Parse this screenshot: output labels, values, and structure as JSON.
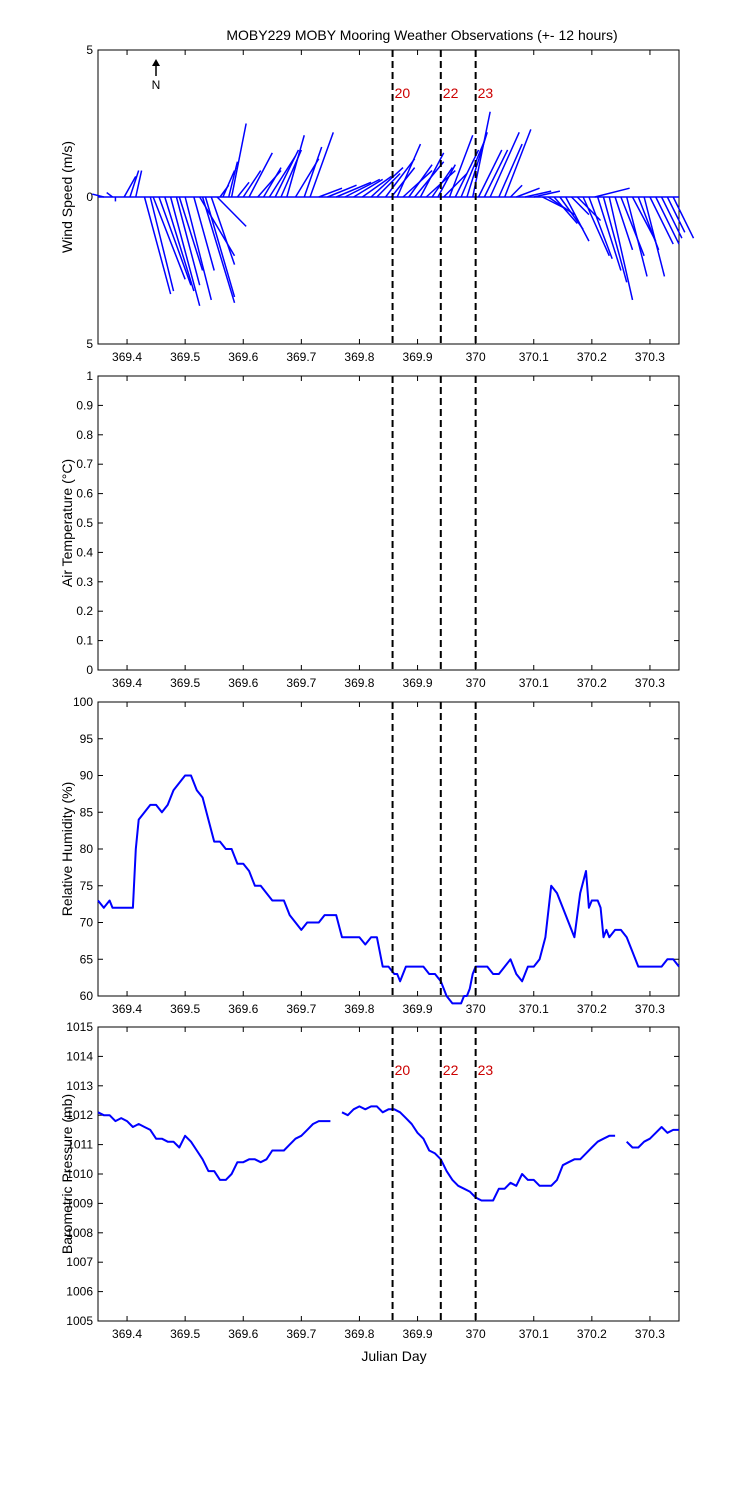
{
  "title": "MOBY229 MOBY Mooring Weather Observations (+- 12 hours)",
  "xlabel": "Julian Day",
  "north_label": "N",
  "x_range": [
    369.35,
    370.35
  ],
  "x_ticks": [
    369.4,
    369.5,
    369.6,
    369.7,
    369.8,
    369.9,
    370,
    370.1,
    370.2,
    370.3
  ],
  "x_tick_labels": [
    "369.4",
    "369.5",
    "369.6",
    "369.7",
    "369.8",
    "369.9",
    "370",
    "370.1",
    "370.2",
    "370.3"
  ],
  "event_lines": [
    {
      "x": 369.857,
      "label": "20"
    },
    {
      "x": 369.94,
      "label": "22"
    },
    {
      "x": 370.0,
      "label": "23"
    }
  ],
  "colors": {
    "series": "#0000ff",
    "event_label": "#cc0000",
    "event_line": "#000000"
  },
  "chart_data": [
    {
      "type": "quiver",
      "ylabel": "Wind Speed (m/s)",
      "ylim": [
        -5,
        5
      ],
      "y_tick_labels": [
        "5",
        "0",
        "5"
      ],
      "show_event_labels": true,
      "vectors": [
        {
          "x": 369.36,
          "u": -0.02,
          "v": 0.1
        },
        {
          "x": 369.375,
          "u": -0.01,
          "v": 0.15
        },
        {
          "x": 369.38,
          "u": 0.0,
          "v": -0.15
        },
        {
          "x": 369.395,
          "u": 0.02,
          "v": 0.7
        },
        {
          "x": 369.405,
          "u": 0.015,
          "v": 0.9
        },
        {
          "x": 369.415,
          "u": 0.01,
          "v": 0.9
        },
        {
          "x": 369.43,
          "u": 0.045,
          "v": -3.3
        },
        {
          "x": 369.44,
          "u": 0.04,
          "v": -3.2
        },
        {
          "x": 369.445,
          "u": 0.055,
          "v": -2.8
        },
        {
          "x": 369.455,
          "u": 0.055,
          "v": -3.0
        },
        {
          "x": 369.465,
          "u": 0.05,
          "v": -3.2
        },
        {
          "x": 369.475,
          "u": 0.05,
          "v": -3.7
        },
        {
          "x": 369.485,
          "u": 0.04,
          "v": -3.0
        },
        {
          "x": 369.49,
          "u": 0.04,
          "v": -2.5
        },
        {
          "x": 369.5,
          "u": 0.045,
          "v": -3.5
        },
        {
          "x": 369.515,
          "u": 0.035,
          "v": -2.5
        },
        {
          "x": 369.525,
          "u": 0.06,
          "v": -2.0
        },
        {
          "x": 369.53,
          "u": 0.055,
          "v": -3.6
        },
        {
          "x": 369.535,
          "u": 0.05,
          "v": -3.4
        },
        {
          "x": 369.545,
          "u": 0.04,
          "v": -2.3
        },
        {
          "x": 369.555,
          "u": 0.05,
          "v": -1.0
        },
        {
          "x": 369.56,
          "u": 0.015,
          "v": 0.4
        },
        {
          "x": 369.565,
          "u": 0.02,
          "v": 0.9
        },
        {
          "x": 369.575,
          "u": 0.015,
          "v": 1.2
        },
        {
          "x": 369.58,
          "u": 0.025,
          "v": 2.5
        },
        {
          "x": 369.59,
          "u": 0.02,
          "v": 0.5
        },
        {
          "x": 369.6,
          "u": 0.03,
          "v": 0.9
        },
        {
          "x": 369.61,
          "u": 0.04,
          "v": 1.5
        },
        {
          "x": 369.625,
          "u": 0.04,
          "v": 0.9
        },
        {
          "x": 369.635,
          "u": 0.03,
          "v": 1.0
        },
        {
          "x": 369.645,
          "u": 0.045,
          "v": 1.4
        },
        {
          "x": 369.655,
          "u": 0.04,
          "v": 1.6
        },
        {
          "x": 369.665,
          "u": 0.035,
          "v": 1.6
        },
        {
          "x": 369.675,
          "u": 0.03,
          "v": 2.1
        },
        {
          "x": 369.69,
          "u": 0.04,
          "v": 1.3
        },
        {
          "x": 369.705,
          "u": 0.03,
          "v": 1.7
        },
        {
          "x": 369.715,
          "u": 0.04,
          "v": 2.2
        },
        {
          "x": 369.73,
          "u": 0.04,
          "v": 0.3
        },
        {
          "x": 369.745,
          "u": 0.05,
          "v": 0.4
        },
        {
          "x": 369.76,
          "u": 0.06,
          "v": 0.5
        },
        {
          "x": 369.775,
          "u": 0.06,
          "v": 0.6
        },
        {
          "x": 369.79,
          "u": 0.05,
          "v": 0.6
        },
        {
          "x": 369.805,
          "u": 0.05,
          "v": 0.7
        },
        {
          "x": 369.82,
          "u": 0.055,
          "v": 1.0
        },
        {
          "x": 369.83,
          "u": 0.04,
          "v": 0.8
        },
        {
          "x": 369.845,
          "u": 0.05,
          "v": 1.3
        },
        {
          "x": 369.855,
          "u": 0.04,
          "v": 1.0
        },
        {
          "x": 369.865,
          "u": 0.04,
          "v": 1.8
        },
        {
          "x": 369.875,
          "u": 0.05,
          "v": 0.9
        },
        {
          "x": 369.885,
          "u": 0.04,
          "v": 1.1
        },
        {
          "x": 369.895,
          "u": 0.05,
          "v": 1.2
        },
        {
          "x": 369.905,
          "u": 0.04,
          "v": 1.5
        },
        {
          "x": 369.915,
          "u": 0.05,
          "v": 0.9
        },
        {
          "x": 369.925,
          "u": 0.035,
          "v": 1.0
        },
        {
          "x": 369.935,
          "u": 0.03,
          "v": 1.1
        },
        {
          "x": 369.945,
          "u": 0.04,
          "v": 0.8
        },
        {
          "x": 369.955,
          "u": 0.04,
          "v": 2.1
        },
        {
          "x": 369.965,
          "u": 0.04,
          "v": 1.6
        },
        {
          "x": 369.975,
          "u": 0.04,
          "v": 1.9
        },
        {
          "x": 369.985,
          "u": 0.035,
          "v": 2.2
        },
        {
          "x": 369.995,
          "u": 0.03,
          "v": 2.9
        },
        {
          "x": 370.005,
          "u": 0.04,
          "v": 1.6
        },
        {
          "x": 370.015,
          "u": 0.04,
          "v": 1.6
        },
        {
          "x": 370.025,
          "u": 0.05,
          "v": 2.2
        },
        {
          "x": 370.04,
          "u": 0.04,
          "v": 1.8
        },
        {
          "x": 370.05,
          "u": 0.045,
          "v": 2.3
        },
        {
          "x": 370.06,
          "u": 0.02,
          "v": 0.4
        },
        {
          "x": 370.07,
          "u": 0.04,
          "v": 0.3
        },
        {
          "x": 370.085,
          "u": 0.045,
          "v": 0.2
        },
        {
          "x": 370.1,
          "u": 0.045,
          "v": 0.2
        },
        {
          "x": 370.115,
          "u": 0.04,
          "v": -0.4
        },
        {
          "x": 370.125,
          "u": 0.045,
          "v": -0.6
        },
        {
          "x": 370.135,
          "u": 0.04,
          "v": -0.9
        },
        {
          "x": 370.145,
          "u": 0.04,
          "v": -1.1
        },
        {
          "x": 370.155,
          "u": 0.04,
          "v": -1.5
        },
        {
          "x": 370.165,
          "u": 0.03,
          "v": -0.6
        },
        {
          "x": 370.175,
          "u": 0.04,
          "v": -0.8
        },
        {
          "x": 370.185,
          "u": 0.045,
          "v": -2.0
        },
        {
          "x": 370.195,
          "u": 0.04,
          "v": -2.1
        },
        {
          "x": 370.205,
          "u": 0.06,
          "v": 0.3
        },
        {
          "x": 370.21,
          "u": 0.04,
          "v": -2.5
        },
        {
          "x": 370.22,
          "u": 0.04,
          "v": -2.9
        },
        {
          "x": 370.23,
          "u": 0.04,
          "v": -3.5
        },
        {
          "x": 370.24,
          "u": 0.03,
          "v": -1.8
        },
        {
          "x": 370.25,
          "u": 0.04,
          "v": -2.0
        },
        {
          "x": 370.26,
          "u": 0.035,
          "v": -2.7
        },
        {
          "x": 370.27,
          "u": 0.04,
          "v": -1.5
        },
        {
          "x": 370.28,
          "u": 0.035,
          "v": -1.8
        },
        {
          "x": 370.29,
          "u": 0.035,
          "v": -2.7
        },
        {
          "x": 370.3,
          "u": 0.04,
          "v": -1.6
        },
        {
          "x": 370.31,
          "u": 0.04,
          "v": -1.6
        },
        {
          "x": 370.32,
          "u": 0.035,
          "v": -1.4
        },
        {
          "x": 370.33,
          "u": 0.03,
          "v": -1.2
        },
        {
          "x": 370.34,
          "u": 0.035,
          "v": -1.4
        }
      ]
    },
    {
      "type": "line",
      "ylabel": "Air Temperature (°C)",
      "ylim": [
        0,
        1
      ],
      "y_ticks": [
        0,
        0.1,
        0.2,
        0.3,
        0.4,
        0.5,
        0.6,
        0.7,
        0.8,
        0.9,
        1
      ],
      "y_tick_labels": [
        "0",
        "0.1",
        "0.2",
        "0.3",
        "0.4",
        "0.5",
        "0.6",
        "0.7",
        "0.8",
        "0.9",
        "1"
      ],
      "show_event_labels": false,
      "series": [
        {
          "x": [],
          "y": []
        }
      ]
    },
    {
      "type": "line",
      "ylabel": "Relative Humidity (%)",
      "ylim": [
        60,
        100
      ],
      "y_ticks": [
        60,
        65,
        70,
        75,
        80,
        85,
        90,
        95,
        100
      ],
      "y_tick_labels": [
        "60",
        "65",
        "70",
        "75",
        "80",
        "85",
        "90",
        "95",
        "100"
      ],
      "show_event_labels": false,
      "series": [
        {
          "x": [
            369.35,
            369.36,
            369.37,
            369.375,
            369.38,
            369.385,
            369.39,
            369.395,
            369.4,
            369.405,
            369.41,
            369.415,
            369.42,
            369.43,
            369.44,
            369.45,
            369.46,
            369.47,
            369.48,
            369.49,
            369.5,
            369.51,
            369.52,
            369.53,
            369.54,
            369.55,
            369.56,
            369.57,
            369.58,
            369.59,
            369.6,
            369.61,
            369.62,
            369.63,
            369.64,
            369.65,
            369.66,
            369.67,
            369.68,
            369.69,
            369.7,
            369.71,
            369.72,
            369.73,
            369.74,
            369.75,
            369.76,
            369.77,
            369.78,
            369.79,
            369.8,
            369.81,
            369.82,
            369.83,
            369.84,
            369.85,
            369.86,
            369.865,
            369.87,
            369.88,
            369.89,
            369.895,
            369.9,
            369.91,
            369.92,
            369.925,
            369.93,
            369.94,
            369.945,
            369.95,
            369.96,
            369.97,
            369.975,
            369.98,
            369.985,
            369.99,
            369.995,
            370.0,
            370.01,
            370.02,
            370.03,
            370.04,
            370.05,
            370.06,
            370.07,
            370.08,
            370.09,
            370.1,
            370.11,
            370.12,
            370.13,
            370.14,
            370.15,
            370.16,
            370.17,
            370.18,
            370.19,
            370.195,
            370.2,
            370.205,
            370.21,
            370.215,
            370.22,
            370.225,
            370.23,
            370.24,
            370.25,
            370.26,
            370.27,
            370.275,
            370.28,
            370.29,
            370.3,
            370.31,
            370.32,
            370.33,
            370.34,
            370.35
          ],
          "y": [
            73,
            72,
            73,
            72,
            72,
            72,
            72,
            72,
            72,
            72,
            72,
            80,
            84,
            85,
            86,
            86,
            85,
            86,
            88,
            89,
            90,
            90,
            88,
            87,
            84,
            81,
            81,
            80,
            80,
            78,
            78,
            77,
            75,
            75,
            74,
            73,
            73,
            73,
            71,
            70,
            69,
            70,
            70,
            70,
            71,
            71,
            71,
            68,
            68,
            68,
            68,
            67,
            68,
            68,
            64,
            64,
            63,
            63,
            62,
            64,
            64,
            64,
            64,
            64,
            63,
            63,
            63,
            62,
            61,
            60,
            59,
            59,
            59,
            60,
            60,
            61,
            63,
            64,
            64,
            64,
            63,
            63,
            64,
            65,
            63,
            62,
            64,
            64,
            65,
            68,
            75,
            74,
            72,
            70,
            68,
            74,
            77,
            72,
            73,
            73,
            73,
            72,
            68,
            69,
            68,
            69,
            69,
            68,
            66,
            65,
            64,
            64,
            64,
            64,
            64,
            65,
            65,
            64
          ]
        }
      ]
    },
    {
      "type": "line",
      "ylabel": "Barometric Pressure (mb)",
      "ylim": [
        1005,
        1015
      ],
      "y_ticks": [
        1005,
        1006,
        1007,
        1008,
        1009,
        1010,
        1011,
        1012,
        1013,
        1014,
        1015
      ],
      "y_tick_labels": [
        "1005",
        "1006",
        "1007",
        "1008",
        "1009",
        "1010",
        "1011",
        "1012",
        "1013",
        "1014",
        "1015"
      ],
      "show_event_labels": true,
      "series": [
        {
          "x": [
            369.35,
            369.36,
            369.37,
            369.38,
            369.39,
            369.4,
            369.41,
            369.42,
            369.43,
            369.44,
            369.45,
            369.46,
            369.47,
            369.48,
            369.49,
            369.5,
            369.51,
            369.52,
            369.53,
            369.54,
            369.55,
            369.56,
            369.57,
            369.58,
            369.59,
            369.6,
            369.61,
            369.62,
            369.63,
            369.64,
            369.65,
            369.66,
            369.67,
            369.68,
            369.69,
            369.7,
            369.71,
            369.72,
            369.73,
            369.74,
            369.75
          ],
          "y": [
            1012.1,
            1012.0,
            1012.0,
            1011.8,
            1011.9,
            1011.8,
            1011.6,
            1011.7,
            1011.6,
            1011.5,
            1011.2,
            1011.2,
            1011.1,
            1011.1,
            1010.9,
            1011.3,
            1011.1,
            1010.8,
            1010.5,
            1010.1,
            1010.1,
            1009.8,
            1009.8,
            1010.0,
            1010.4,
            1010.4,
            1010.5,
            1010.5,
            1010.4,
            1010.5,
            1010.8,
            1010.8,
            1010.8,
            1011.0,
            1011.2,
            1011.3,
            1011.5,
            1011.7,
            1011.8,
            1011.8,
            1011.8
          ]
        },
        {
          "x": [
            369.77,
            369.78,
            369.79,
            369.8,
            369.81,
            369.82,
            369.83,
            369.84,
            369.85,
            369.86,
            369.87,
            369.88,
            369.89,
            369.9,
            369.91,
            369.92,
            369.93,
            369.94,
            369.95,
            369.96,
            369.97,
            369.98,
            369.99,
            370.0,
            370.01,
            370.02,
            370.03,
            370.04,
            370.05,
            370.06,
            370.07,
            370.08,
            370.09,
            370.1,
            370.11,
            370.12,
            370.13,
            370.14,
            370.15,
            370.16,
            370.17,
            370.18,
            370.19,
            370.2,
            370.21,
            370.22,
            370.23,
            370.24
          ],
          "y": [
            1012.1,
            1012.0,
            1012.2,
            1012.3,
            1012.2,
            1012.3,
            1012.3,
            1012.1,
            1012.2,
            1012.2,
            1012.1,
            1011.9,
            1011.7,
            1011.4,
            1011.2,
            1010.8,
            1010.7,
            1010.5,
            1010.1,
            1009.8,
            1009.6,
            1009.5,
            1009.4,
            1009.2,
            1009.1,
            1009.1,
            1009.1,
            1009.5,
            1009.5,
            1009.7,
            1009.6,
            1010.0,
            1009.8,
            1009.8,
            1009.6,
            1009.6,
            1009.6,
            1009.8,
            1010.3,
            1010.4,
            1010.5,
            1010.5,
            1010.7,
            1010.9,
            1011.1,
            1011.2,
            1011.3,
            1011.3
          ]
        },
        {
          "x": [
            370.26,
            370.27,
            370.28,
            370.29,
            370.3,
            370.31,
            370.32,
            370.33,
            370.34,
            370.35
          ],
          "y": [
            1011.1,
            1010.9,
            1010.9,
            1011.1,
            1011.2,
            1011.4,
            1011.6,
            1011.4,
            1011.5,
            1011.5
          ]
        }
      ]
    }
  ]
}
